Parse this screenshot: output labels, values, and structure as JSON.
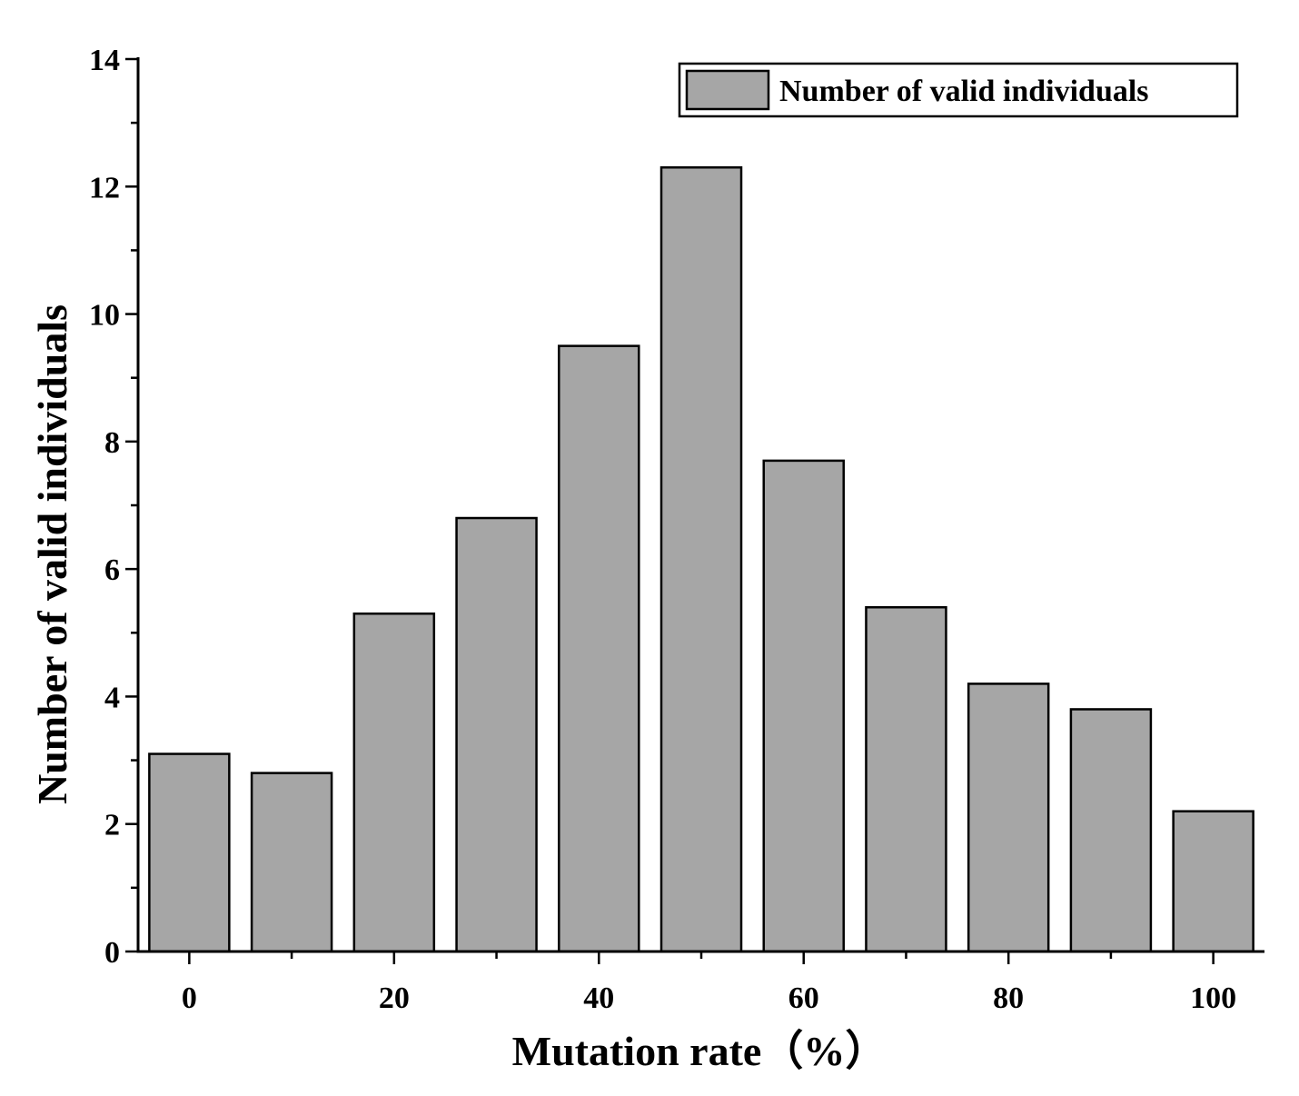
{
  "chart_data": {
    "type": "bar",
    "x": [
      0,
      10,
      20,
      30,
      40,
      50,
      60,
      70,
      80,
      90,
      100
    ],
    "series": [
      {
        "name": "Number of valid individuals",
        "values": [
          3.1,
          2.8,
          5.3,
          6.8,
          9.5,
          12.3,
          7.7,
          5.4,
          4.2,
          3.8,
          2.2
        ],
        "color": "#a6a6a6"
      }
    ],
    "title": "",
    "xlabel": "Mutation rate（%）",
    "ylabel": "Number of valid individuals",
    "xlim": [
      -5,
      105
    ],
    "ylim": [
      0,
      14
    ],
    "xticks": [
      0,
      20,
      40,
      60,
      80,
      100
    ],
    "xticklabels": [
      "0",
      "20",
      "40",
      "60",
      "80",
      "100"
    ],
    "yticks": [
      0,
      2,
      4,
      6,
      8,
      10,
      12,
      14
    ],
    "yticklabels": [
      "0",
      "2",
      "4",
      "6",
      "8",
      "10",
      "12",
      "14"
    ],
    "grid": false,
    "legend": {
      "position": "top-right",
      "entries": [
        "Number of valid individuals"
      ]
    },
    "colors": {
      "bar_fill": "#a6a6a6",
      "bar_edge": "#000000",
      "axis": "#000000"
    }
  }
}
